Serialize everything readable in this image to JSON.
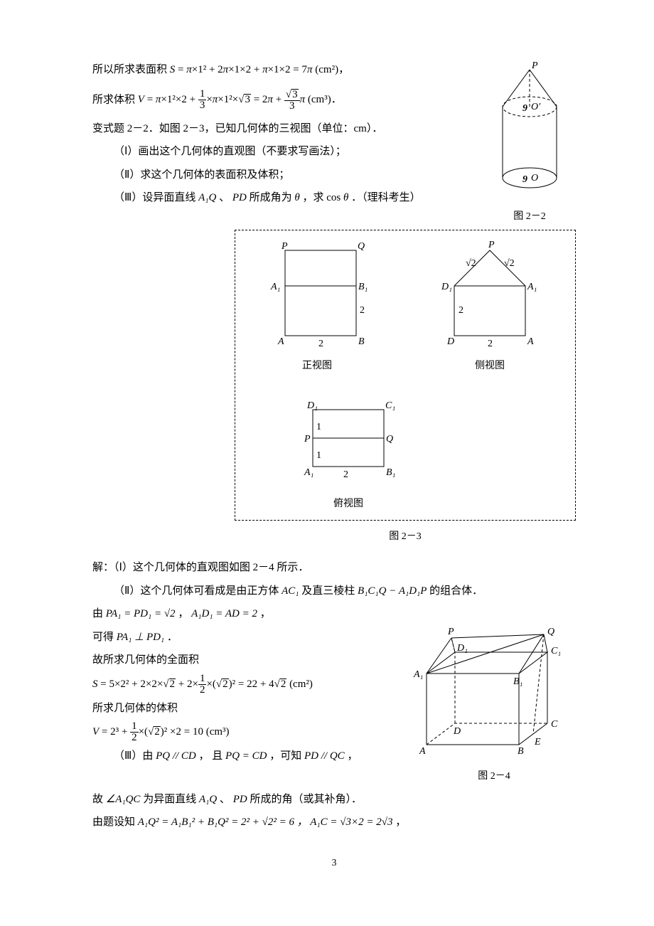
{
  "line_surface": {
    "pre": "所以所求表面积 ",
    "expr_html": "<span class='math'>S</span> = <span class='math'>π</span>×1² + 2<span class='math'>π</span>×1×2 + <span class='math'>π</span>×1×2 = 7<span class='math'>π</span> <span class='rm'>(cm²)</span>，"
  },
  "line_volume": {
    "pre": "所求体积 ",
    "expr_html": "<span class='math'>V</span> = <span class='math'>π</span>×1²×2 + <span class='frac'><span class='n'>1</span><span class='d'>3</span></span>×<span class='math'>π</span>×1²×<span class='sqrtpre'></span><span class='sqrt'>3</span> = 2<span class='math'>π</span> + <span class='frac'><span class='n'><span class='sqrtpre'></span><span class='sqrt'>3</span></span><span class='d'>3</span></span><span class='math'>π</span> <span class='rm'>(cm³)</span>．"
  },
  "variant": {
    "title": "变式题 2－2．如图 2－3，已知几何体的三视图（单位：cm）．",
    "i": "（Ⅰ）画出这个几何体的直观图（不要求写画法）；",
    "ii": "（Ⅱ）求这个几何体的表面积及体积；",
    "iii_pre": "（Ⅲ）设异面直线 ",
    "iii_mid": "、",
    "iii_a1q": "A₁Q",
    "iii_pd": "PD",
    "iii_post1": " 所成角为 ",
    "theta": "θ",
    "iii_post2": " ，求 cos",
    "theta2": "θ",
    "iii_tail": " ．（理科考生）"
  },
  "fig22": {
    "P": "P",
    "Oprime": "O′",
    "O": "O",
    "dim": "9",
    "caption": "图 2－2"
  },
  "fig23": {
    "caption": "图 2－3",
    "front": {
      "P": "P",
      "Q": "Q",
      "A1": "A₁",
      "B1": "B₁",
      "A": "A",
      "B": "B",
      "dim2v": "2",
      "dim2h": "2",
      "label": "正视图"
    },
    "side": {
      "P": "P",
      "D1": "D₁",
      "A1": "A₁",
      "D": "D",
      "A": "A",
      "sqrt2a": "√2",
      "sqrt2b": "√2",
      "dim2v": "2",
      "dim2h": "2",
      "label": "侧视图"
    },
    "top": {
      "D1": "D₁",
      "C1": "C₁",
      "P": "P",
      "Q": "Q",
      "A1": "A₁",
      "B1": "B₁",
      "dim1a": "1",
      "dim1b": "1",
      "dim2": "2",
      "label": "俯视图"
    }
  },
  "sol": {
    "s1": "解：（Ⅰ）这个几何体的直观图如图 2－4 所示．",
    "s2_pre": "（Ⅱ）这个几何体可看成是由正方体 ",
    "s2_ac1": "AC₁",
    "s2_mid": " 及直三棱柱 ",
    "s2_prism": "B₁C₁Q − A₁D₁P",
    "s2_tail": " 的组合体．",
    "s3_pre": "由 ",
    "s3_a": "PA₁ = PD₁ = ",
    "s3_root2": "√2",
    "s3_comma": " ，  ",
    "s3_b": "A₁D₁ = AD = 2",
    "s3_tail": " ，",
    "s4_pre": "可得 ",
    "s4_perp": "PA₁ ⊥ PD₁",
    "s4_tail": "．",
    "s5": "故所求几何体的全面积",
    "s6_html": "<span class='math'>S</span> = 5×2² + 2×2×<span class='sqrtpre'></span><span class='sqrt'>2</span> + 2×<span class='frac'><span class='n'>1</span><span class='d'>2</span></span>×(<span class='sqrtpre'></span><span class='sqrt'>2</span>)² = 22 + 4<span class='sqrtpre'></span><span class='sqrt'>2</span> <span class='rm'>(cm²)</span>",
    "s7": "所求几何体的体积",
    "s8_html": "<span class='math'>V</span> = 2³ + <span class='frac'><span class='n'>1</span><span class='d'>2</span></span>×(<span class='sqrtpre'></span><span class='sqrt'>2</span>)² ×2 = 10 <span class='rm'>(cm³)</span>",
    "s9_pre": "（Ⅲ）由 ",
    "s9_a": "PQ // CD",
    "s9_mid": "，  且 ",
    "s9_b": "PQ = CD",
    "s9_mid2": " ，可知 ",
    "s9_c": "PD // QC",
    "s9_tail": " ，",
    "s10_pre": "故 ",
    "s10_ang": "∠A₁QC",
    "s10_mid": " 为异面直线 ",
    "s10_a1q": "A₁Q",
    "s10_sep": " 、",
    "s10_pd": "PD",
    "s10_tail": " 所成的角（或其补角）．",
    "s11_pre": "由题设知 ",
    "s11_a": "A₁Q² = A₁B₁² + B₁Q² = 2² + ",
    "s11_root2sq": "√2",
    "s11_post": "² = 6 ，  ",
    "s11_b": "A₁C = ",
    "s11_root3": "√3",
    "s11_b2": "×2 = 2",
    "s11_root3b": "√3",
    "s11_tail": " ，"
  },
  "fig24": {
    "P": "P",
    "Q": "Q",
    "D1": "D₁",
    "C1": "C₁",
    "A1": "A₁",
    "B1": "B₁",
    "D": "D",
    "C": "C",
    "A": "A",
    "B": "B",
    "E": "E",
    "caption": "图 2－4"
  },
  "page_number": "3"
}
